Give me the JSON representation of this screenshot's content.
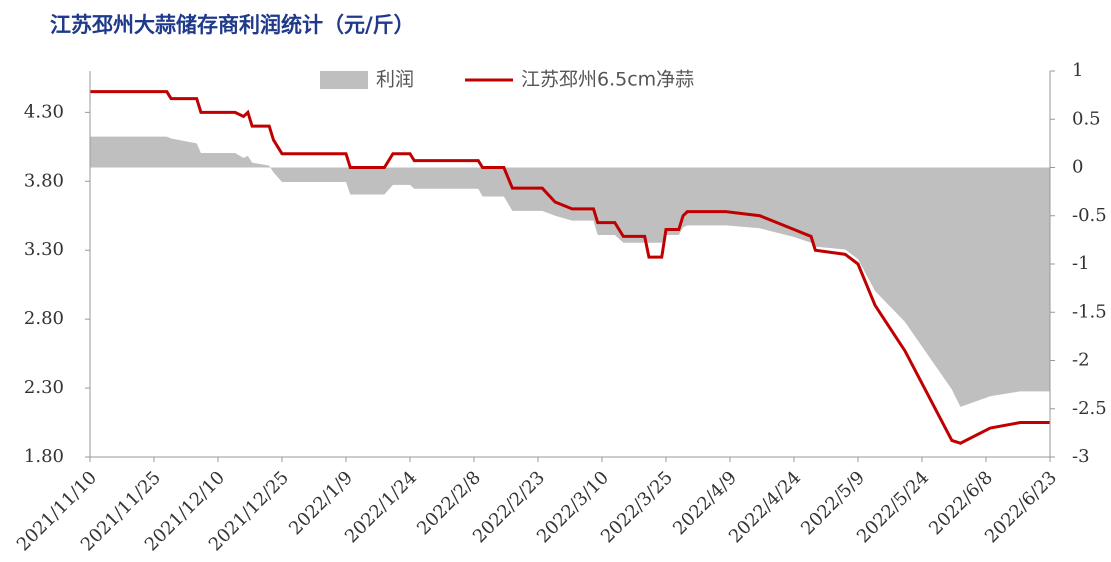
{
  "chart_data": {
    "type": "line",
    "title": "江苏邳州大蒜储存商利润统计（元/斤）",
    "x": [
      "2021/11/10",
      "2021/11/28",
      "2021/11/29",
      "2021/12/5",
      "2021/12/6",
      "2021/12/14",
      "2021/12/16",
      "2021/12/17",
      "2021/12/18",
      "2021/12/22",
      "2021/12/23",
      "2021/12/25",
      "2022/1/9",
      "2022/1/10",
      "2022/1/18",
      "2022/1/20",
      "2022/1/24",
      "2022/1/25",
      "2022/2/9",
      "2022/2/10",
      "2022/2/15",
      "2022/2/17",
      "2022/2/24",
      "2022/2/27",
      "2022/3/3",
      "2022/3/8",
      "2022/3/9",
      "2022/3/13",
      "2022/3/15",
      "2022/3/20",
      "2022/3/21",
      "2022/3/24",
      "2022/3/25",
      "2022/3/28",
      "2022/3/29",
      "2022/3/30",
      "2022/4/8",
      "2022/4/16",
      "2022/4/24",
      "2022/4/28",
      "2022/4/29",
      "2022/5/6",
      "2022/5/9",
      "2022/5/13",
      "2022/5/20",
      "2022/5/31",
      "2022/6/2",
      "2022/6/9",
      "2022/6/16",
      "2022/6/23"
    ],
    "series": [
      {
        "name": "利润",
        "kind": "area",
        "axis": "y2",
        "color": "#bfbfbf",
        "values": [
          0.32,
          0.32,
          0.3,
          0.25,
          0.15,
          0.15,
          0.1,
          0.12,
          0.05,
          0.02,
          -0.05,
          -0.15,
          -0.15,
          -0.28,
          -0.28,
          -0.18,
          -0.18,
          -0.22,
          -0.22,
          -0.3,
          -0.3,
          -0.45,
          -0.45,
          -0.5,
          -0.55,
          -0.55,
          -0.7,
          -0.7,
          -0.78,
          -0.78,
          -0.78,
          -0.78,
          -0.7,
          -0.7,
          -0.62,
          -0.6,
          -0.6,
          -0.63,
          -0.72,
          -0.78,
          -0.82,
          -0.85,
          -0.95,
          -1.28,
          -1.6,
          -2.3,
          -2.48,
          -2.37,
          -2.32,
          -2.32
        ]
      },
      {
        "name": "江苏邳州6.5cm净蒜",
        "kind": "line",
        "color": "#c00000",
        "values": [
          4.45,
          4.45,
          4.4,
          4.4,
          4.3,
          4.3,
          4.27,
          4.3,
          4.2,
          4.2,
          4.1,
          4.0,
          4.0,
          3.9,
          3.9,
          4.0,
          4.0,
          3.95,
          3.95,
          3.9,
          3.9,
          3.75,
          3.75,
          3.65,
          3.6,
          3.6,
          3.5,
          3.5,
          3.4,
          3.4,
          3.25,
          3.25,
          3.45,
          3.45,
          3.55,
          3.58,
          3.58,
          3.55,
          3.45,
          3.4,
          3.3,
          3.27,
          3.2,
          2.9,
          2.57,
          1.92,
          1.9,
          2.01,
          2.05,
          2.05
        ]
      }
    ],
    "xlim": [
      "2021/11/10",
      "2022/6/23"
    ],
    "xticks": [
      "2021/11/10",
      "2021/11/25",
      "2021/12/10",
      "2021/12/25",
      "2022/1/9",
      "2022/1/24",
      "2022/2/8",
      "2022/2/23",
      "2022/3/10",
      "2022/3/25",
      "2022/4/9",
      "2022/4/24",
      "2022/5/9",
      "2022/5/24",
      "2022/6/8",
      "2022/6/23"
    ],
    "ylim": [
      1.8,
      4.6
    ],
    "yticks": [
      {
        "value": 1.8,
        "label": "1.80"
      },
      {
        "value": 2.3,
        "label": "2.30"
      },
      {
        "value": 2.8,
        "label": "2.80"
      },
      {
        "value": 3.3,
        "label": "3.30"
      },
      {
        "value": 3.8,
        "label": "3.80"
      },
      {
        "value": 4.3,
        "label": "4.30"
      }
    ],
    "y2lim": [
      -3,
      1
    ],
    "y2ticks": [
      -3,
      -2.5,
      -2,
      -1.5,
      -1,
      -0.5,
      0,
      0.5,
      1
    ],
    "legend": "top"
  }
}
